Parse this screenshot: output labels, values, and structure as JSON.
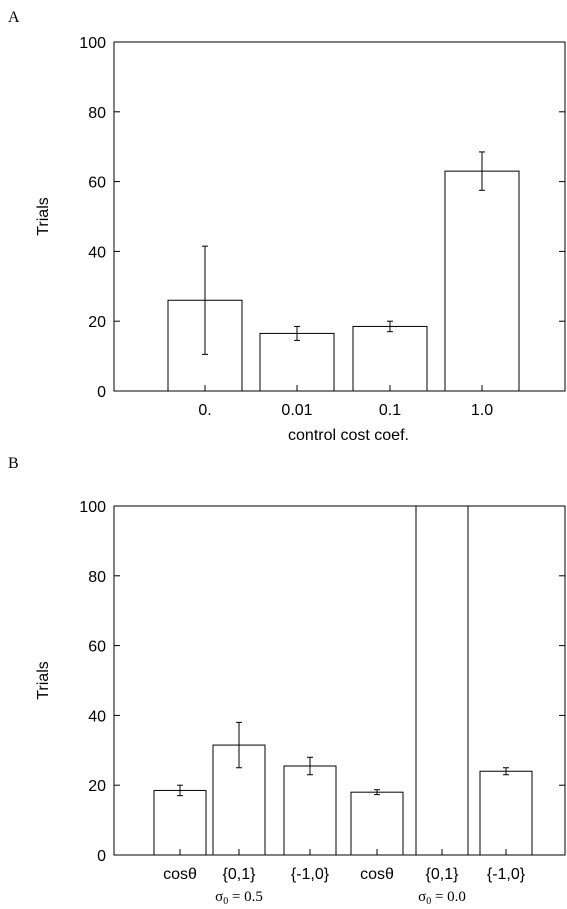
{
  "chart_data": [
    {
      "panel_label": "A",
      "type": "bar",
      "ylabel": "Trials",
      "xlabel": "control cost coef.",
      "ylim": [
        0,
        100
      ],
      "yticks": [
        "0",
        "20",
        "40",
        "60",
        "80",
        "100"
      ],
      "categories": [
        "0.",
        "0.01",
        "0.1",
        "1.0"
      ],
      "values": [
        26,
        16.5,
        18.5,
        63
      ],
      "errors": [
        15.5,
        2,
        1.5,
        5.5
      ],
      "grid": false,
      "colors": {
        "bar_fill": "#ffffff",
        "stroke": "#000000"
      }
    },
    {
      "panel_label": "B",
      "type": "bar",
      "ylabel": "Trials",
      "ylim": [
        0,
        100
      ],
      "yticks": [
        "0",
        "20",
        "40",
        "60",
        "80",
        "100"
      ],
      "categories": [
        "cosθ",
        "{0,1}",
        "{-1,0}",
        "cosθ",
        "{0,1}",
        "{-1,0}"
      ],
      "values": [
        18.5,
        31.5,
        25.5,
        18,
        100,
        24
      ],
      "errors": [
        1.5,
        6.5,
        2.5,
        0.7,
        null,
        1
      ],
      "group_labels": [
        {
          "symbol": "σ",
          "subscript": "0",
          "value": " = 0.5",
          "center_index": 1
        },
        {
          "symbol": "σ",
          "subscript": "0",
          "value": " = 0.0",
          "center_index": 4
        }
      ],
      "grid": false,
      "colors": {
        "bar_fill": "#ffffff",
        "stroke": "#000000"
      }
    }
  ]
}
